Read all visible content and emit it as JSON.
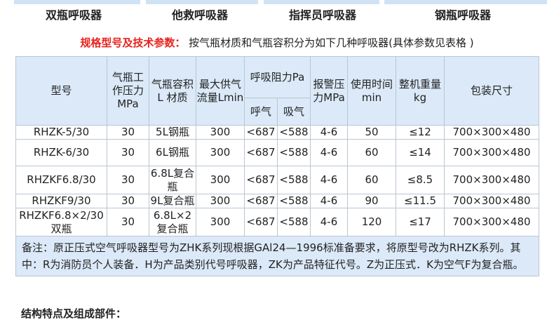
{
  "tabs": [
    "双瓶呼吸器",
    "他救呼吸器",
    "指挥员呼吸器",
    "钢瓶呼吸器"
  ],
  "spec_heading": "规格型号及技术参数：",
  "spec_text": "按气瓶材质和气瓶容积分为如下几种呼吸器(具体参数见表格 )",
  "table": {
    "headers": {
      "model": "型号",
      "pressure": "气瓶工作压力MPa",
      "volume": "气瓶容积L 材质",
      "flow": "最大供气流量Lmin",
      "resistance": "呼吸阻力Pa",
      "exhale": "呼气",
      "inhale": "吸气",
      "alarm": "报警压力MPa",
      "time": "使用时间min",
      "weight": "整机重量kg",
      "size": "包装尺寸"
    },
    "rows": [
      {
        "model": "RHZK-5/30",
        "pressure": "30",
        "volume": "5L钢瓶",
        "flow": "300",
        "exhale": "<687",
        "inhale": "<588",
        "alarm": "4-6",
        "time": "50",
        "weight": "≤12",
        "size": "700×300×480"
      },
      {
        "model": "RHZK-6/30",
        "pressure": "30",
        "volume": "6L钢瓶",
        "flow": "300",
        "exhale": "<687",
        "inhale": "<588",
        "alarm": "4-6",
        "time": "60",
        "weight": "≤14",
        "size": "700×300×480"
      },
      {
        "model": "RHZKF6.8/30",
        "pressure": "30",
        "volume": "6.8L复合瓶",
        "flow": "300",
        "exhale": "<687",
        "inhale": "<588",
        "alarm": "4-6",
        "time": "60",
        "weight": "≤8.5",
        "size": "700×300×480"
      },
      {
        "model": "RHZKF9/30",
        "pressure": "30",
        "volume": "9L复合瓶",
        "flow": "300",
        "exhale": "<687",
        "inhale": "<588",
        "alarm": "4-6",
        "time": "90",
        "weight": "≤11.5",
        "size": "700×300×480"
      },
      {
        "model": "RHZKF6.8×2/30双瓶",
        "pressure": "30",
        "volume": "6.8L×2复合瓶",
        "flow": "300",
        "exhale": "<687",
        "inhale": "<588",
        "alarm": "4-6",
        "time": "120",
        "weight": "≤17",
        "size": "700×300×480"
      }
    ],
    "note": "备注：原正压式空气呼吸器型号为ZHK系列现根据GAl24—1996标准备要求，将原型号改为RHZK系列。其中：R为消防员个人装备．H为产品类别代号呼吸器，ZK为产品特征代号。Z为正压式．K为空气F为复合瓶。"
  },
  "structure_heading": "结构特点及组成部件："
}
